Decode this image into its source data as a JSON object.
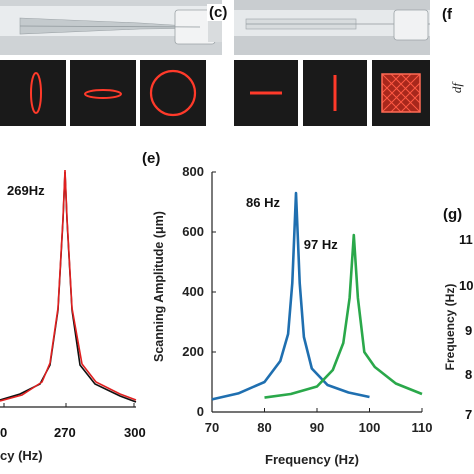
{
  "panels": {
    "c": {
      "letter": "(c)"
    },
    "f": {
      "letter": "(f"
    },
    "e": {
      "letter": "(e)"
    },
    "g": {
      "letter": "(g)"
    },
    "cropped_f_label": "df"
  },
  "colors": {
    "red_trace": "#e02020",
    "blue_trace": "#1f6fb0",
    "green_trace": "#2aa84a",
    "black_trace": "#111111",
    "photo_bg_dark": "#1a1a1a",
    "laser_red": "#ff3a2a"
  },
  "left_plot": {
    "peak_label": "269Hz",
    "x_axis_title_partial": "cy (Hz)",
    "x_tick_labels": [
      "0",
      "270",
      "300"
    ]
  },
  "g_plot": {
    "y_axis_title_partial": "Frequency (Hz)",
    "y_tick_labels": [
      "11",
      "10",
      "9",
      "8",
      "7"
    ]
  },
  "chart_data": {
    "type": "line",
    "title": "",
    "xlabel": "Frequency (Hz)",
    "ylabel": "Scanning Amplitude (μm)",
    "xlim": [
      70,
      110
    ],
    "ylim": [
      0,
      800
    ],
    "x_ticks": [
      70,
      80,
      90,
      100,
      110
    ],
    "y_ticks": [
      0,
      200,
      400,
      600,
      800
    ],
    "annotations": [
      {
        "text": "86 Hz",
        "x": 86,
        "y": 730
      },
      {
        "text": "97 Hz",
        "x": 97,
        "y": 590
      }
    ],
    "series": [
      {
        "color": "#1f6fb0",
        "x": [
          70,
          75,
          80,
          83,
          84.5,
          85.3,
          86,
          86.7,
          87.5,
          89,
          92,
          96,
          100
        ],
        "y": [
          42,
          62,
          100,
          170,
          260,
          430,
          730,
          430,
          250,
          145,
          90,
          65,
          50
        ]
      },
      {
        "color": "#2aa84a",
        "x": [
          80,
          85,
          90,
          93,
          95,
          96.2,
          97,
          97.8,
          99,
          101,
          105,
          110
        ],
        "y": [
          48,
          60,
          85,
          140,
          230,
          380,
          590,
          380,
          200,
          150,
          95,
          60
        ]
      }
    ]
  }
}
